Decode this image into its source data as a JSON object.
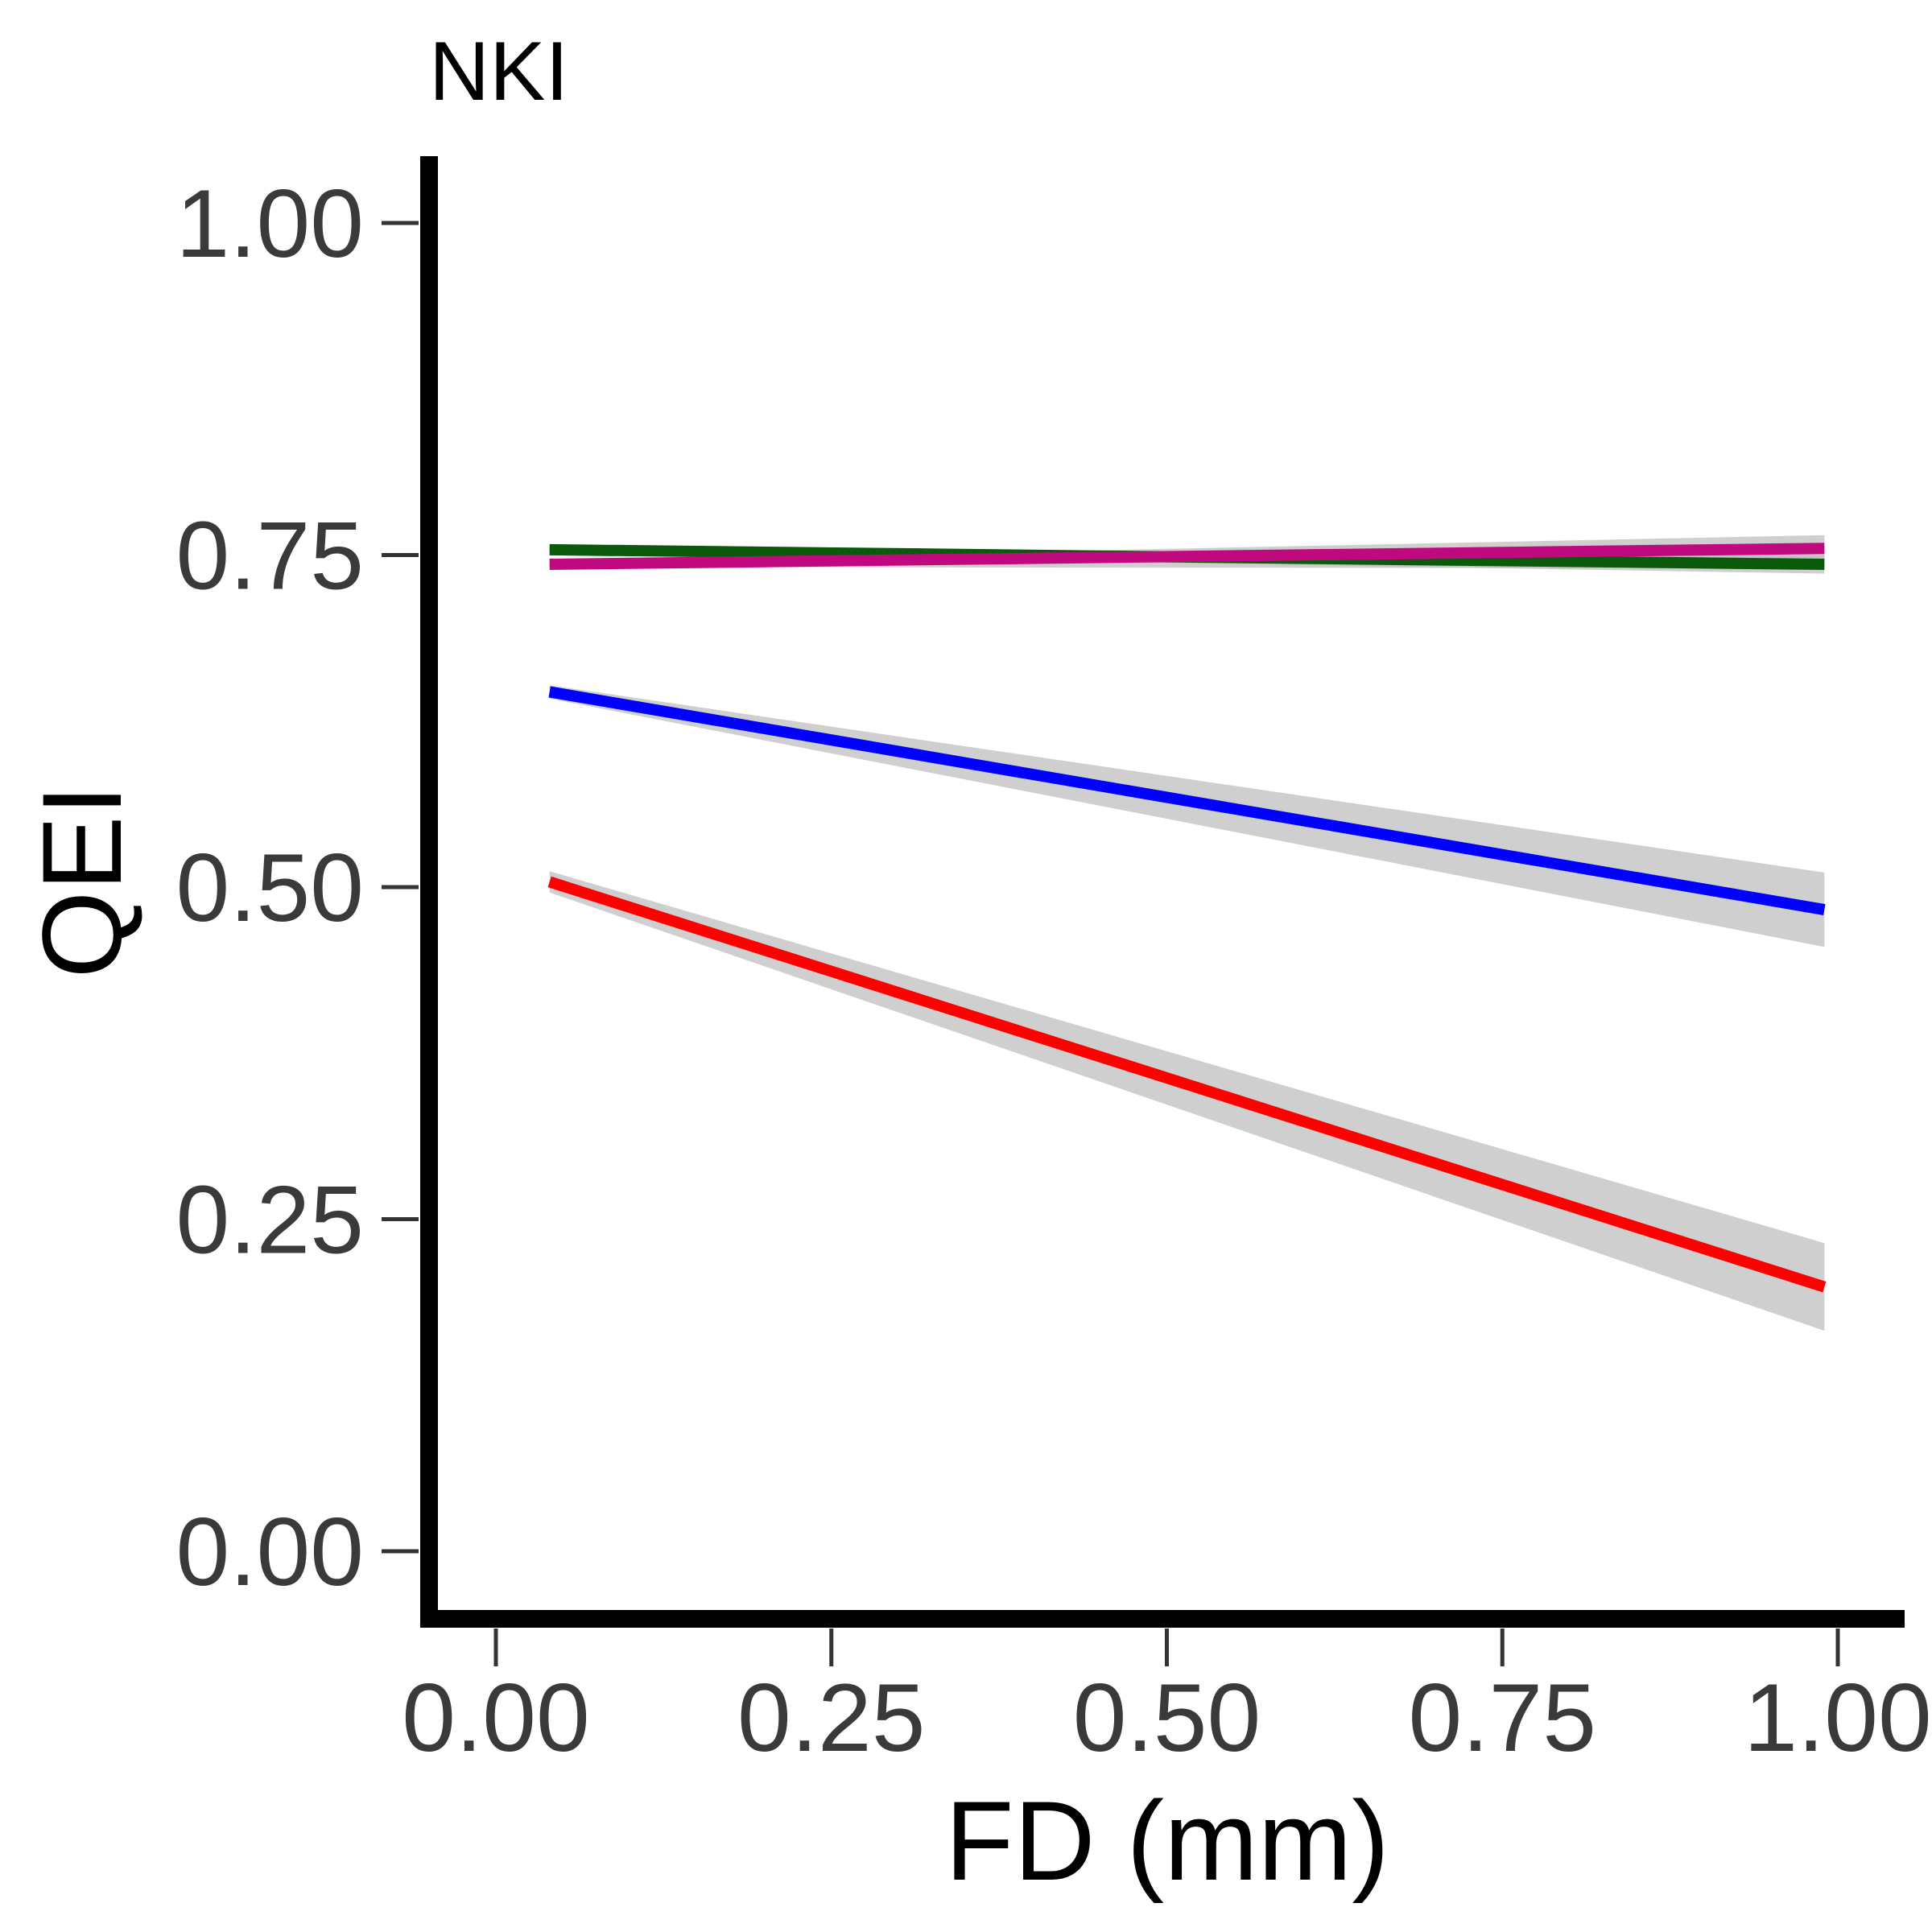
{
  "chart_data": {
    "type": "line",
    "title": "NKI",
    "xlabel": "FD (mm)",
    "ylabel": "QEI",
    "xlim": [
      -0.05,
      1.05
    ],
    "ylim": [
      -0.05,
      1.05
    ],
    "x_ticks": [
      0,
      0.25,
      0.5,
      0.75,
      1.0
    ],
    "x_tick_labels": [
      "0.00",
      "0.25",
      "0.50",
      "0.75",
      "1.00"
    ],
    "y_ticks": [
      0,
      0.25,
      0.5,
      0.75,
      1.0
    ],
    "y_tick_labels": [
      "0.00",
      "0.25",
      "0.50",
      "0.75",
      "1.00"
    ],
    "grid": false,
    "legend": "none",
    "series": [
      {
        "color": "#0b5a0b",
        "x": [
          0.04,
          0.99
        ],
        "y": [
          0.754,
          0.743
        ],
        "ci_lower": [
          0.752,
          0.736
        ],
        "ci_upper": [
          0.756,
          0.75
        ]
      },
      {
        "color": "#c0087f",
        "x": [
          0.04,
          0.99
        ],
        "y": [
          0.743,
          0.755
        ],
        "ci_lower": [
          0.741,
          0.74
        ],
        "ci_upper": [
          0.745,
          0.765
        ]
      },
      {
        "color": "#0000ff",
        "x": [
          0.04,
          0.99
        ],
        "y": [
          0.647,
          0.483
        ],
        "ci_lower": [
          0.642,
          0.455
        ],
        "ci_upper": [
          0.652,
          0.511
        ]
      },
      {
        "color": "#ff0000",
        "x": [
          0.04,
          0.99
        ],
        "y": [
          0.504,
          0.199
        ],
        "ci_lower": [
          0.496,
          0.166
        ],
        "ci_upper": [
          0.512,
          0.232
        ]
      }
    ]
  }
}
